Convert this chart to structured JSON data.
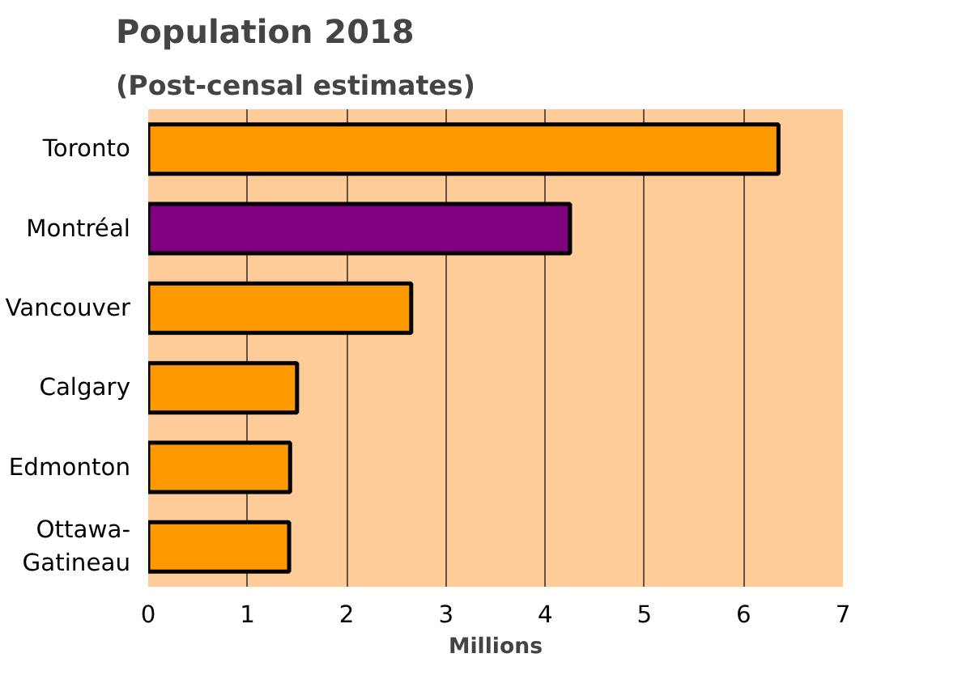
{
  "chart_data": {
    "type": "bar",
    "orientation": "horizontal",
    "title": "Population 2018",
    "subtitle": "(Post-censal estimates)",
    "categories": [
      "Toronto",
      "Montréal",
      "Vancouver",
      "Calgary",
      "Edmonton",
      "Ottawa-\nGatineau"
    ],
    "values": [
      6.35,
      4.25,
      2.65,
      1.5,
      1.43,
      1.42
    ],
    "colors": [
      "#ff9900",
      "#800080",
      "#ff9900",
      "#ff9900",
      "#ff9900",
      "#ff9900"
    ],
    "xlabel": "Millions",
    "xlim": [
      0,
      7
    ],
    "xticks": [
      0,
      1,
      2,
      3,
      4,
      5,
      6,
      7
    ],
    "grid": "x"
  }
}
